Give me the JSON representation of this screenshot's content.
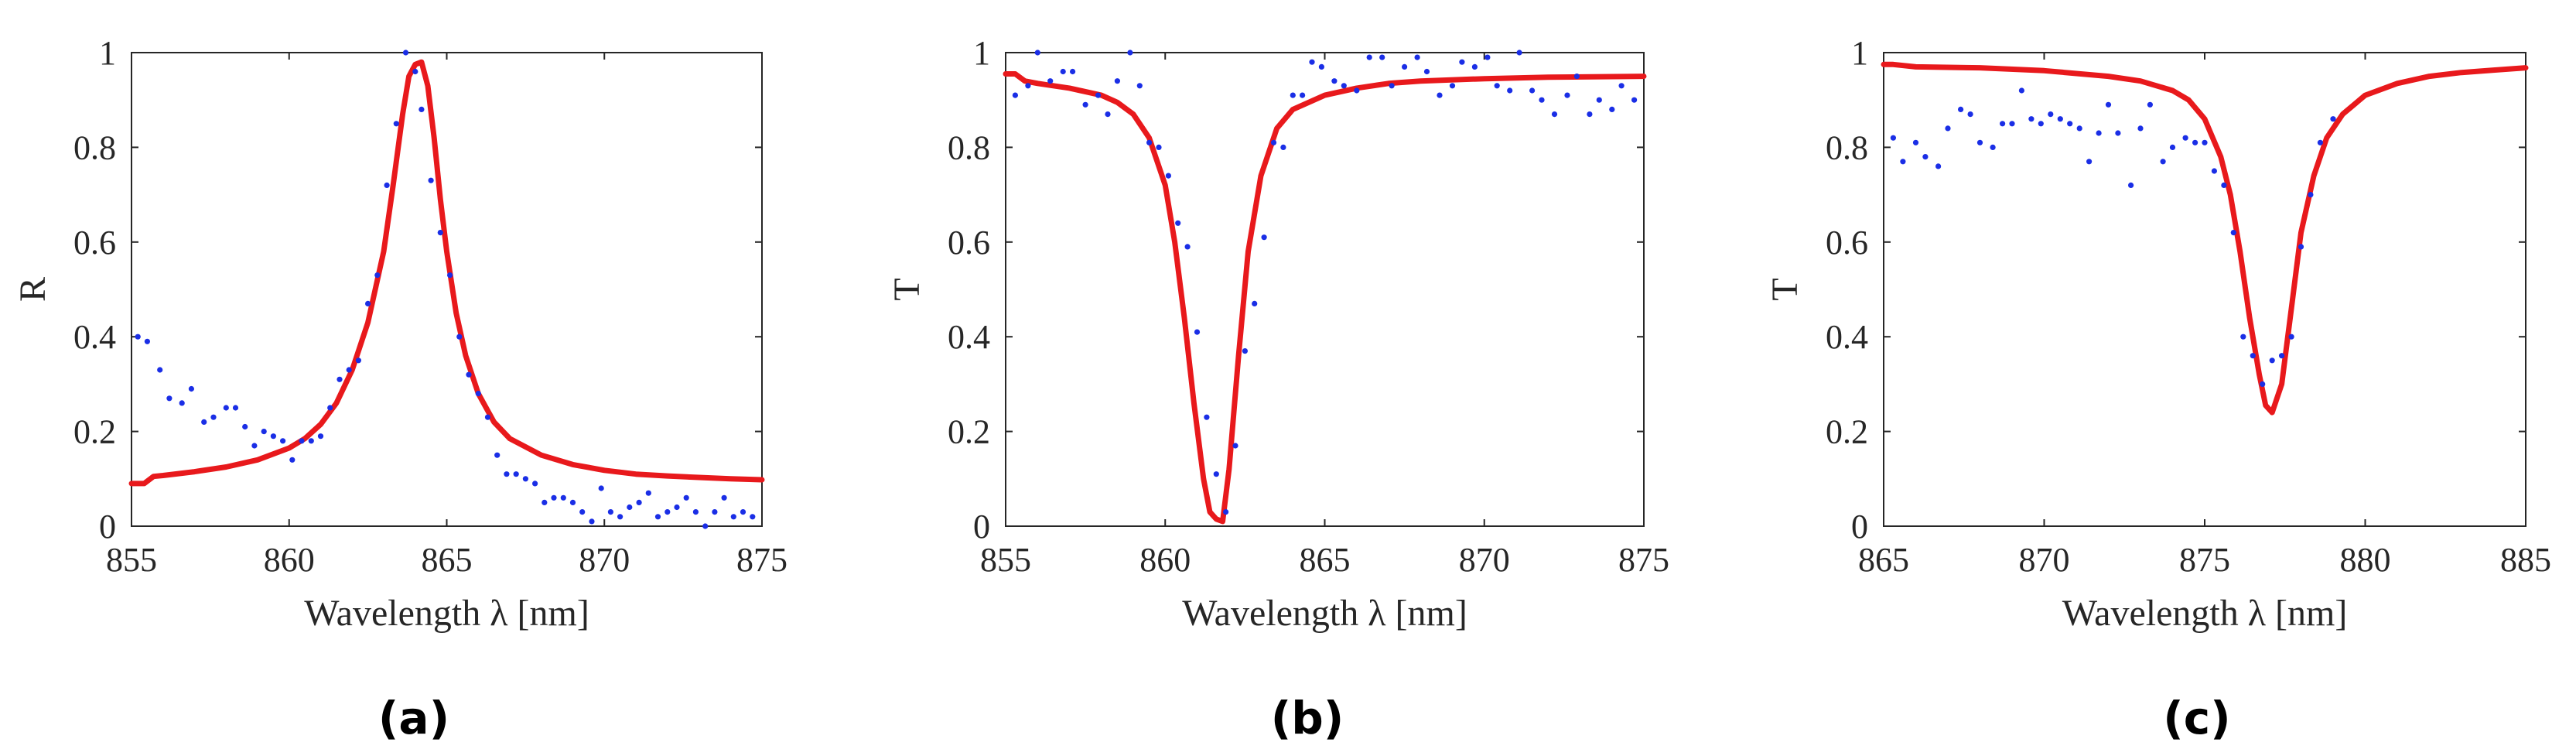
{
  "colors": {
    "fit": "#e8191c",
    "measured": "#1a2ee6",
    "axis": "#262626"
  },
  "chart_data": [
    {
      "type": "line",
      "panel_label": "(a)",
      "xlabel": "Wavelength λ [nm]",
      "ylabel": "R",
      "xlim": [
        855,
        875
      ],
      "ylim": [
        0,
        1
      ],
      "xticks": [
        855,
        860,
        865,
        870,
        875
      ],
      "yticks": [
        0,
        0.2,
        0.4,
        0.6,
        0.8,
        1
      ],
      "xtick_labels": [
        "855",
        "860",
        "865",
        "870",
        "875"
      ],
      "ytick_labels": [
        "0",
        "0.2",
        "0.4",
        "0.6",
        "0.8",
        "1"
      ],
      "grid": false,
      "series": [
        {
          "style": "line",
          "x": [
            855,
            855.4,
            855.7,
            856,
            857,
            858,
            859,
            860,
            860.5,
            861,
            861.5,
            862,
            862.5,
            863,
            863.3,
            863.6,
            863.8,
            864,
            864.2,
            864.4,
            864.6,
            864.8,
            865,
            865.3,
            865.6,
            866,
            866.5,
            867,
            868,
            869,
            870,
            871,
            872,
            873,
            874,
            875
          ],
          "y": [
            0.09,
            0.09,
            0.105,
            0.107,
            0.115,
            0.125,
            0.14,
            0.165,
            0.185,
            0.215,
            0.26,
            0.33,
            0.43,
            0.58,
            0.72,
            0.87,
            0.95,
            0.975,
            0.98,
            0.93,
            0.82,
            0.69,
            0.58,
            0.45,
            0.36,
            0.28,
            0.22,
            0.185,
            0.15,
            0.13,
            0.118,
            0.11,
            0.106,
            0.103,
            0.1,
            0.098
          ]
        },
        {
          "style": "points",
          "x": [
            855.2,
            855.5,
            855.9,
            856.2,
            856.6,
            856.9,
            857.3,
            857.6,
            858,
            858.3,
            858.6,
            858.9,
            859.2,
            859.5,
            859.8,
            860.1,
            860.4,
            860.7,
            861,
            861.3,
            861.6,
            861.9,
            862.2,
            862.5,
            862.8,
            863.1,
            863.4,
            863.7,
            864,
            864.2,
            864.5,
            864.8,
            865.1,
            865.4,
            865.7,
            866,
            866.3,
            866.6,
            866.9,
            867.2,
            867.5,
            867.8,
            868.1,
            868.4,
            868.7,
            869,
            869.3,
            869.6,
            869.9,
            870.2,
            870.5,
            870.8,
            871.1,
            871.4,
            871.7,
            872,
            872.3,
            872.6,
            872.9,
            873.2,
            873.5,
            873.8,
            874.1,
            874.4,
            874.7
          ],
          "y": [
            0.4,
            0.39,
            0.33,
            0.27,
            0.26,
            0.29,
            0.22,
            0.23,
            0.25,
            0.25,
            0.21,
            0.17,
            0.2,
            0.19,
            0.18,
            0.14,
            0.18,
            0.18,
            0.19,
            0.25,
            0.31,
            0.33,
            0.35,
            0.47,
            0.53,
            0.72,
            0.85,
            1.0,
            0.96,
            0.88,
            0.73,
            0.62,
            0.53,
            0.4,
            0.32,
            0.28,
            0.23,
            0.15,
            0.11,
            0.11,
            0.1,
            0.09,
            0.05,
            0.06,
            0.06,
            0.05,
            0.03,
            0.01,
            0.08,
            0.03,
            0.02,
            0.04,
            0.05,
            0.07,
            0.02,
            0.03,
            0.04,
            0.06,
            0.03,
            0.0,
            0.03,
            0.06,
            0.02,
            0.03,
            0.02
          ]
        }
      ]
    },
    {
      "type": "line",
      "panel_label": "(b)",
      "xlabel": "Wavelength λ [nm]",
      "ylabel": "T",
      "xlim": [
        855,
        875
      ],
      "ylim": [
        0,
        1
      ],
      "xticks": [
        855,
        860,
        865,
        870,
        875
      ],
      "yticks": [
        0,
        0.2,
        0.4,
        0.6,
        0.8,
        1
      ],
      "xtick_labels": [
        "855",
        "860",
        "865",
        "870",
        "875"
      ],
      "ytick_labels": [
        "0",
        "0.2",
        "0.4",
        "0.6",
        "0.8",
        "1"
      ],
      "grid": false,
      "series": [
        {
          "style": "line",
          "x": [
            855,
            855.3,
            855.6,
            856,
            857,
            858,
            858.5,
            859,
            859.5,
            860,
            860.3,
            860.6,
            860.9,
            861.2,
            861.4,
            861.6,
            861.8,
            862,
            862.3,
            862.6,
            863,
            863.5,
            864,
            865,
            866,
            867,
            868,
            870,
            872,
            875
          ],
          "y": [
            0.955,
            0.955,
            0.94,
            0.935,
            0.925,
            0.91,
            0.895,
            0.87,
            0.82,
            0.72,
            0.6,
            0.44,
            0.26,
            0.1,
            0.03,
            0.015,
            0.01,
            0.12,
            0.36,
            0.58,
            0.74,
            0.84,
            0.88,
            0.91,
            0.925,
            0.935,
            0.94,
            0.945,
            0.948,
            0.95
          ]
        },
        {
          "style": "points",
          "x": [
            855.3,
            855.7,
            856,
            856.4,
            856.8,
            857.1,
            857.5,
            857.9,
            858.2,
            858.5,
            858.9,
            859.2,
            859.5,
            859.8,
            860.1,
            860.4,
            860.7,
            861,
            861.3,
            861.6,
            861.9,
            862.2,
            862.5,
            862.8,
            863.1,
            863.4,
            863.7,
            864,
            864.3,
            864.6,
            864.9,
            865.3,
            865.6,
            866,
            866.4,
            866.8,
            867.1,
            867.5,
            867.9,
            868.2,
            868.6,
            869,
            869.3,
            869.7,
            870.1,
            870.4,
            870.8,
            871.1,
            871.5,
            871.8,
            872.2,
            872.6,
            872.9,
            873.3,
            873.6,
            874,
            874.3,
            874.7
          ],
          "y": [
            0.91,
            0.93,
            1.0,
            0.94,
            0.96,
            0.96,
            0.89,
            0.91,
            0.87,
            0.94,
            1.0,
            0.93,
            0.81,
            0.8,
            0.74,
            0.64,
            0.59,
            0.41,
            0.23,
            0.11,
            0.03,
            0.17,
            0.37,
            0.47,
            0.61,
            0.81,
            0.8,
            0.91,
            0.91,
            0.98,
            0.97,
            0.94,
            0.93,
            0.92,
            0.99,
            0.99,
            0.93,
            0.97,
            0.99,
            0.96,
            0.91,
            0.93,
            0.98,
            0.97,
            0.99,
            0.93,
            0.92,
            1.0,
            0.92,
            0.9,
            0.87,
            0.91,
            0.95,
            0.87,
            0.9,
            0.88,
            0.93,
            0.9
          ]
        }
      ]
    },
    {
      "type": "line",
      "panel_label": "(c)",
      "xlabel": "Wavelength λ [nm]",
      "ylabel": "T",
      "xlim": [
        865,
        885
      ],
      "ylim": [
        0,
        1
      ],
      "xticks": [
        865,
        870,
        875,
        880,
        885
      ],
      "yticks": [
        0,
        0.2,
        0.4,
        0.6,
        0.8,
        1
      ],
      "xtick_labels": [
        "865",
        "870",
        "875",
        "880",
        "885"
      ],
      "ytick_labels": [
        "0",
        "0.2",
        "0.4",
        "0.6",
        "0.8",
        "1"
      ],
      "grid": false,
      "series": [
        {
          "style": "line",
          "x": [
            865,
            865.3,
            866,
            868,
            870,
            872,
            873,
            874,
            874.5,
            875,
            875.5,
            875.8,
            876.1,
            876.4,
            876.7,
            876.9,
            877.1,
            877.4,
            877.7,
            878,
            878.4,
            878.8,
            879.3,
            880,
            881,
            882,
            883,
            884,
            885
          ],
          "y": [
            0.975,
            0.975,
            0.97,
            0.968,
            0.962,
            0.95,
            0.94,
            0.92,
            0.9,
            0.86,
            0.78,
            0.7,
            0.58,
            0.44,
            0.32,
            0.255,
            0.24,
            0.3,
            0.46,
            0.62,
            0.74,
            0.82,
            0.87,
            0.91,
            0.935,
            0.95,
            0.958,
            0.963,
            0.968
          ]
        },
        {
          "style": "points",
          "x": [
            865.3,
            865.6,
            866,
            866.3,
            866.7,
            867,
            867.4,
            867.7,
            868,
            868.4,
            868.7,
            869,
            869.3,
            869.6,
            869.9,
            870.2,
            870.5,
            870.8,
            871.1,
            871.4,
            871.7,
            872,
            872.3,
            872.7,
            873,
            873.3,
            873.7,
            874,
            874.4,
            874.7,
            875,
            875.3,
            875.6,
            875.9,
            876.2,
            876.5,
            876.8,
            877.1,
            877.4,
            877.7,
            878,
            878.3,
            878.6,
            879
          ],
          "y": [
            0.82,
            0.77,
            0.81,
            0.78,
            0.76,
            0.84,
            0.88,
            0.87,
            0.81,
            0.8,
            0.85,
            0.85,
            0.92,
            0.86,
            0.85,
            0.87,
            0.86,
            0.85,
            0.84,
            0.77,
            0.83,
            0.89,
            0.83,
            0.72,
            0.84,
            0.89,
            0.77,
            0.8,
            0.82,
            0.81,
            0.81,
            0.75,
            0.72,
            0.62,
            0.4,
            0.36,
            0.3,
            0.35,
            0.36,
            0.4,
            0.59,
            0.7,
            0.81,
            0.86
          ]
        }
      ]
    }
  ]
}
